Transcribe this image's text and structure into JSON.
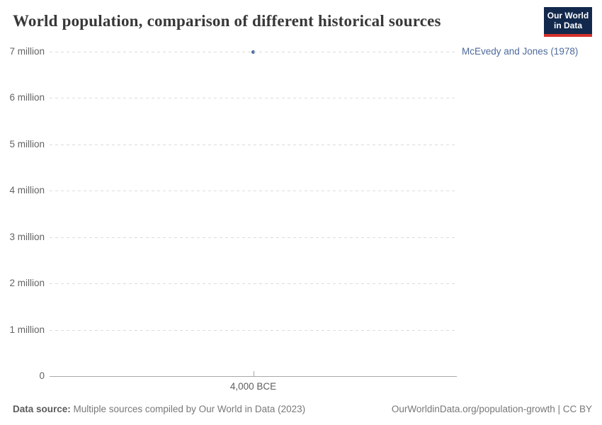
{
  "header": {
    "title": "World population, comparison of different historical sources",
    "logo": {
      "line1": "Our World",
      "line2": "in Data",
      "bg_color": "#12284c",
      "accent_color": "#d4302c"
    }
  },
  "chart_data": {
    "type": "scatter",
    "title": "World population, comparison of different historical sources",
    "series": [
      {
        "name": "McEvedy and Jones (1978)",
        "color": "#4c6a9c",
        "points": [
          {
            "x": "4,000 BCE",
            "y": 7000000,
            "y_display": "7 million"
          }
        ]
      }
    ],
    "ylim": [
      0,
      7000000
    ],
    "y_ticks": [
      {
        "label": "7 million",
        "value": 7000000
      },
      {
        "label": "6 million",
        "value": 6000000
      },
      {
        "label": "5 million",
        "value": 5000000
      },
      {
        "label": "4 million",
        "value": 4000000
      },
      {
        "label": "3 million",
        "value": 3000000
      },
      {
        "label": "2 million",
        "value": 2000000
      },
      {
        "label": "1 million",
        "value": 1000000
      },
      {
        "label": "0",
        "value": 0
      }
    ],
    "x_ticks": [
      "4,000 BCE"
    ],
    "grid": "horizontal-dashed",
    "legend_position": "right-of-series-end"
  },
  "footer": {
    "datasource_label": "Data source:",
    "datasource_text": " Multiple sources compiled by Our World in Data (2023)",
    "attribution": "OurWorldinData.org/population-growth | CC BY"
  }
}
